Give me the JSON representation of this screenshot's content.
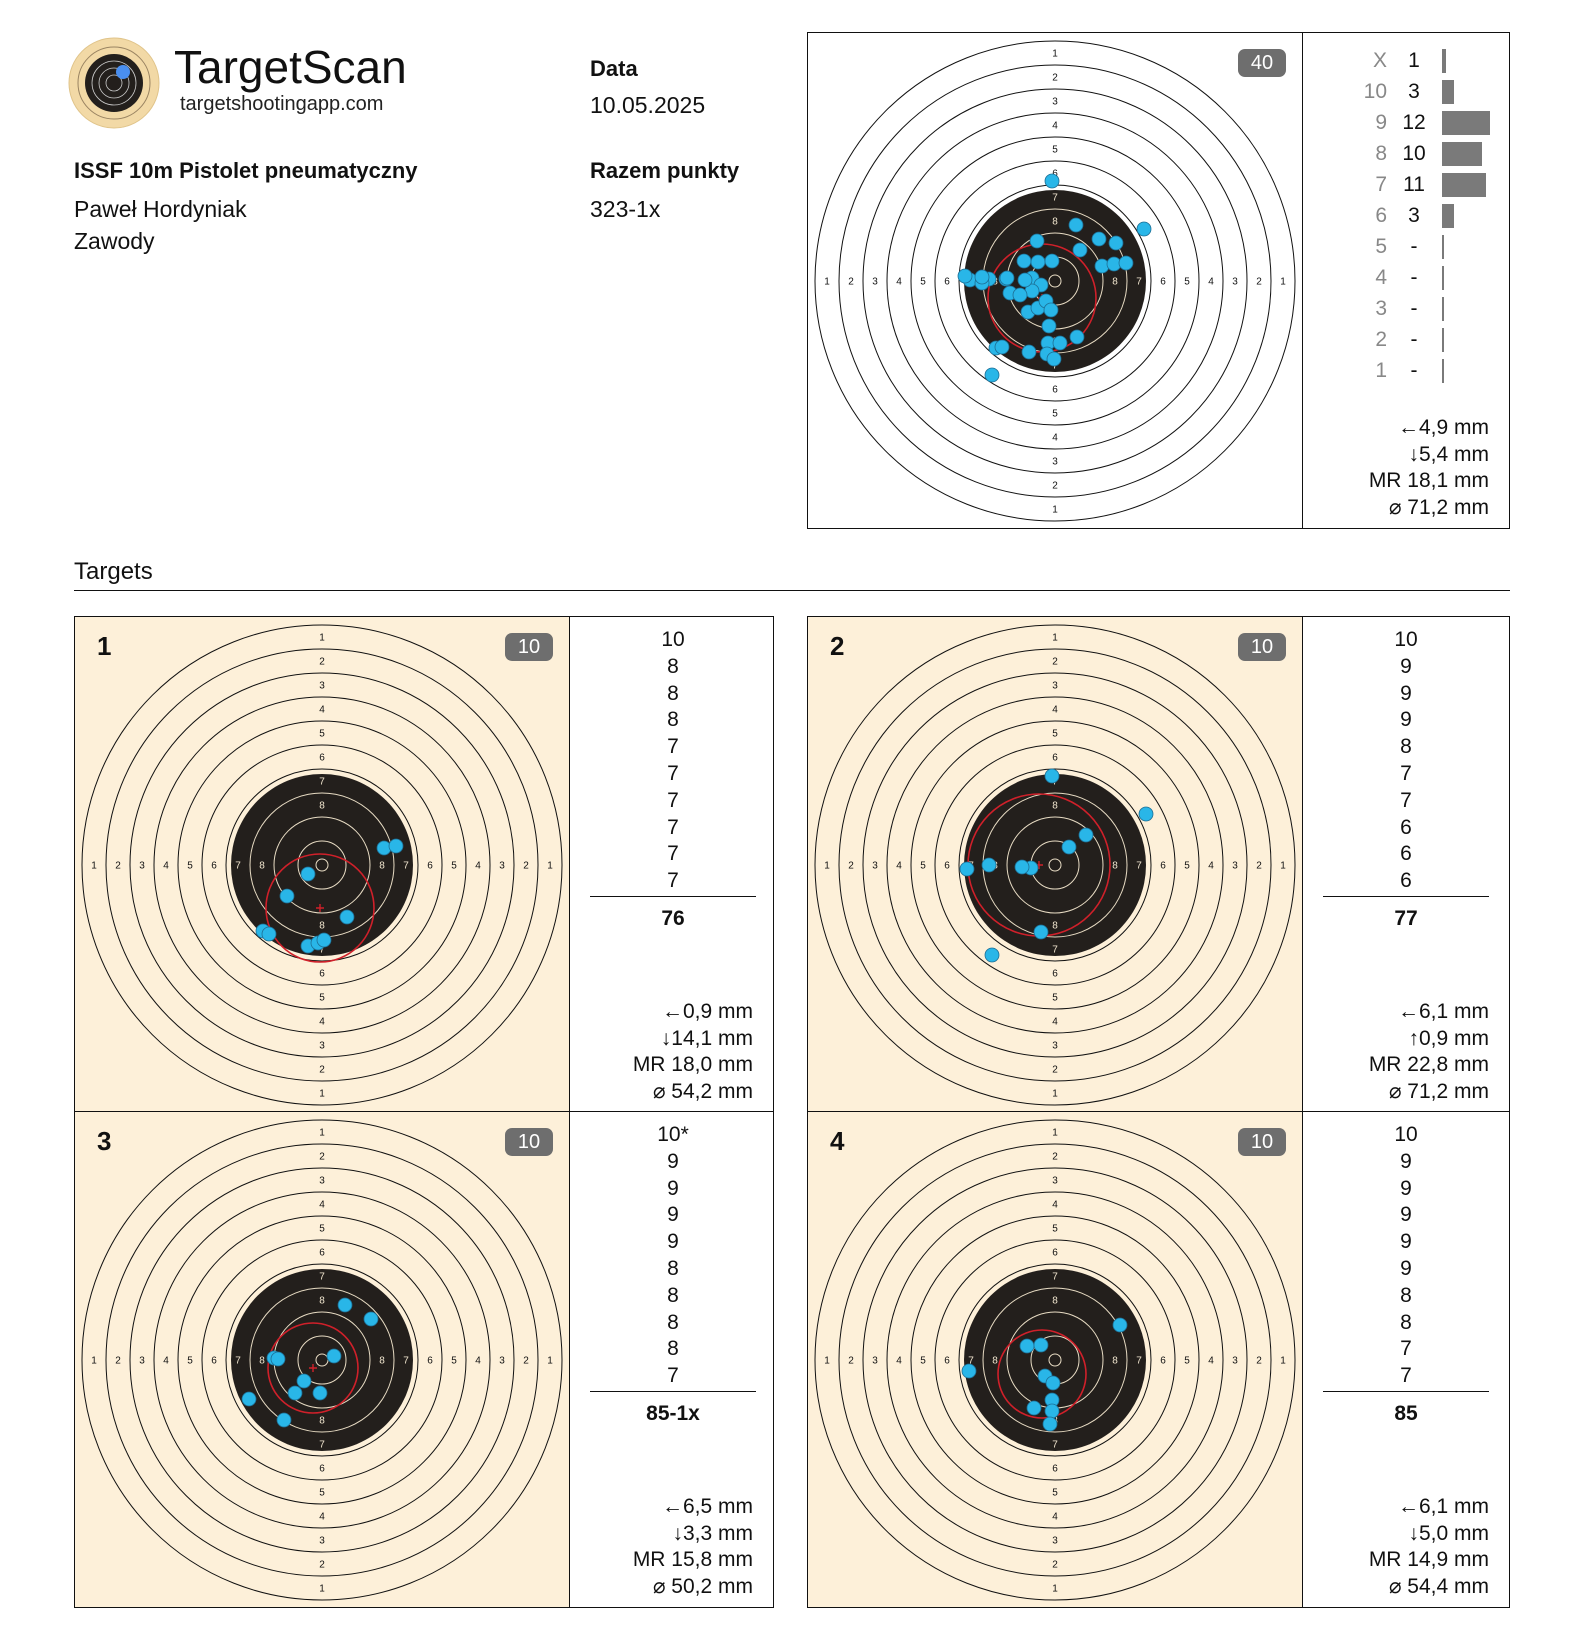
{
  "app": {
    "title": "TargetScan",
    "url": "targetshootingapp.com"
  },
  "event": {
    "discipline": "ISSF 10m Pistolet pneumatyczny",
    "shooter": "Paweł Hordyniak",
    "type": "Zawody"
  },
  "date": {
    "label": "Data",
    "value": "10.05.2025"
  },
  "total": {
    "label": "Razem punkty",
    "value": "323-1x"
  },
  "section_title": "Targets",
  "summary": {
    "shots_badge": "40",
    "histogram": [
      {
        "label": "X",
        "count": "1",
        "value": 1
      },
      {
        "label": "10",
        "count": "3",
        "value": 3
      },
      {
        "label": "9",
        "count": "12",
        "value": 12
      },
      {
        "label": "8",
        "count": "10",
        "value": 10
      },
      {
        "label": "7",
        "count": "11",
        "value": 11
      },
      {
        "label": "6",
        "count": "3",
        "value": 3
      },
      {
        "label": "5",
        "count": "-",
        "value": 0
      },
      {
        "label": "4",
        "count": "-",
        "value": 0
      },
      {
        "label": "3",
        "count": "-",
        "value": 0
      },
      {
        "label": "2",
        "count": "-",
        "value": 0
      },
      {
        "label": "1",
        "count": "-",
        "value": 0
      }
    ],
    "stats": [
      "←4,9 mm",
      "↓5,4 mm",
      "MR  18,1 mm",
      "⌀ 71,2 mm"
    ]
  },
  "targets": [
    {
      "number": "1",
      "badge": "10",
      "scores": [
        "10",
        "8",
        "8",
        "8",
        "7",
        "7",
        "7",
        "7",
        "7",
        "7"
      ],
      "total": "76",
      "stats": [
        "←0,9 mm",
        "↓14,1 mm",
        "MR  18,0 mm",
        "⌀ 54,2 mm"
      ]
    },
    {
      "number": "2",
      "badge": "10",
      "scores": [
        "10",
        "9",
        "9",
        "9",
        "8",
        "7",
        "7",
        "6",
        "6",
        "6"
      ],
      "total": "77",
      "stats": [
        "←6,1 mm",
        "↑0,9 mm",
        "MR  22,8 mm",
        "⌀ 71,2 mm"
      ]
    },
    {
      "number": "3",
      "badge": "10",
      "scores": [
        "10*",
        "9",
        "9",
        "9",
        "9",
        "8",
        "8",
        "8",
        "8",
        "7"
      ],
      "total": "85-1x",
      "stats": [
        "←6,5 mm",
        "↓3,3 mm",
        "MR  15,8 mm",
        "⌀ 50,2 mm"
      ]
    },
    {
      "number": "4",
      "badge": "10",
      "scores": [
        "10",
        "9",
        "9",
        "9",
        "9",
        "9",
        "8",
        "8",
        "7",
        "7"
      ],
      "total": "85",
      "stats": [
        "←6,1 mm",
        "↓5,0 mm",
        "MR  14,9 mm",
        "⌀ 54,4 mm"
      ]
    }
  ],
  "colors": {
    "beige": "#fdf0d9",
    "shot": "#29b6e8",
    "group": "#d0202a",
    "black": "#231f1c"
  }
}
